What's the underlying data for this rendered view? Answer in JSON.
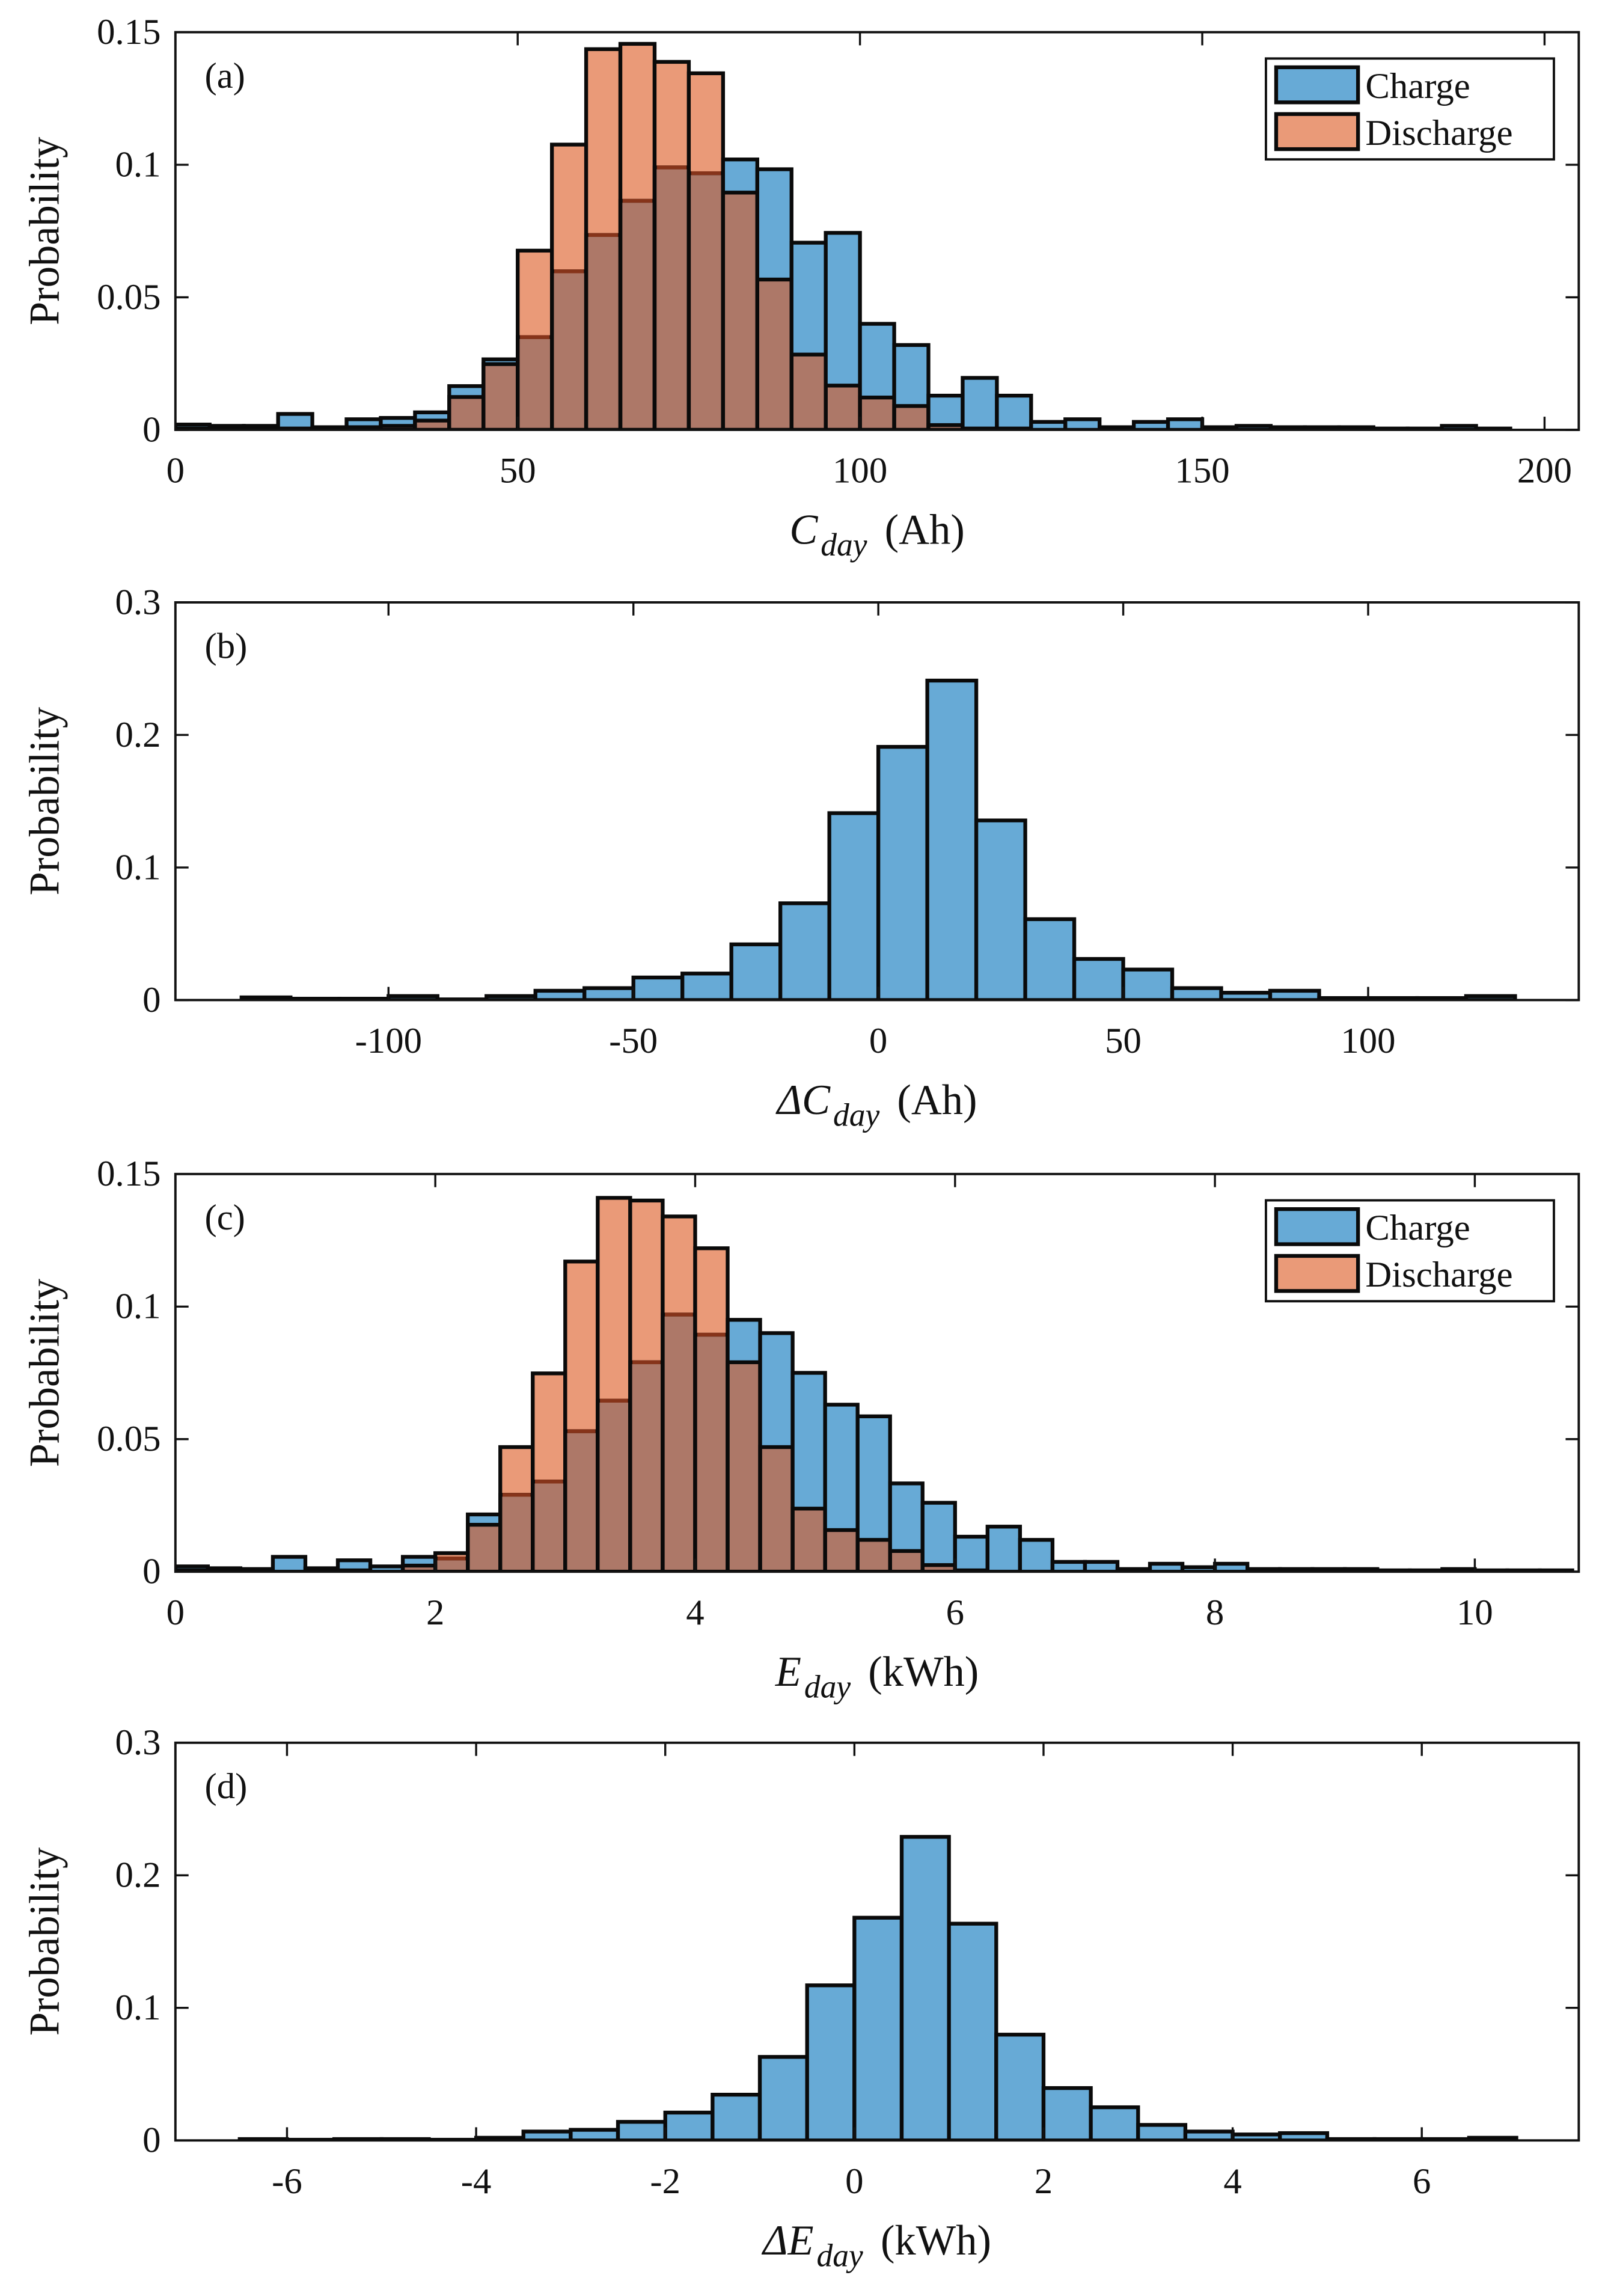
{
  "colors": {
    "charge": "#67aad6",
    "discharge": "#ea9a78",
    "overlap": "#ad7868",
    "overlap_edge": "#86341a",
    "edge": "#0a0a0a"
  },
  "chart_data": [
    {
      "type": "bar",
      "subtype": "histogram",
      "panel_label": "(a)",
      "ylabel": "Probability",
      "xlabel": {
        "symbol": "C",
        "subscript": "day",
        "unit": "(Ah)"
      },
      "xlim": [
        0,
        205
      ],
      "ylim": [
        0,
        0.15
      ],
      "xticks": [
        0,
        50,
        100,
        150,
        200
      ],
      "xtick_labels": [
        "0",
        "50",
        "100",
        "150",
        "200"
      ],
      "yticks": [
        0,
        0.05,
        0.1,
        0.15
      ],
      "ytick_labels": [
        "0",
        "0.05",
        "0.1",
        "0.15"
      ],
      "bin_start": 0,
      "bin_width": 5,
      "legend": {
        "entries": [
          "Charge",
          "Discharge"
        ],
        "placement": "top-right"
      },
      "series": [
        {
          "name": "Charge",
          "values": [
            0.002,
            0.0015,
            0.0015,
            0.006,
            0.001,
            0.004,
            0.0045,
            0.0066,
            0.0165,
            0.0266,
            0.035,
            0.0598,
            0.0735,
            0.0864,
            0.099,
            0.0968,
            0.102,
            0.0983,
            0.0706,
            0.0743,
            0.04,
            0.032,
            0.0129,
            0.0196,
            0.0129,
            0.003,
            0.004,
            0.001,
            0.003,
            0.004,
            0.001,
            0.0015,
            0.001,
            0.001,
            0.001,
            0.0005,
            0.0005,
            0.0015,
            0.0005
          ]
        },
        {
          "name": "Discharge",
          "values": [
            0.0005,
            0.0005,
            0.0005,
            0.0005,
            0.0005,
            0.001,
            0.0015,
            0.0035,
            0.0124,
            0.0248,
            0.0676,
            0.1076,
            0.1436,
            0.1456,
            0.1388,
            0.1345,
            0.0895,
            0.0567,
            0.0284,
            0.0167,
            0.0122,
            0.009,
            0.0018,
            0.0005,
            0.0005,
            0,
            0,
            0,
            0,
            0,
            0,
            0,
            0,
            0,
            0,
            0,
            0,
            0,
            0
          ]
        }
      ]
    },
    {
      "type": "bar",
      "subtype": "histogram",
      "panel_label": "(b)",
      "ylabel": "Probability",
      "xlabel": {
        "symbol": "ΔC",
        "subscript": "day",
        "unit": "(Ah)"
      },
      "xlim": [
        -143.5,
        143
      ],
      "ylim": [
        0,
        0.3
      ],
      "xticks": [
        -100,
        -50,
        0,
        50,
        100
      ],
      "xtick_labels": [
        "-100",
        "-50",
        "0",
        "50",
        "100"
      ],
      "yticks": [
        0,
        0.1,
        0.2,
        0.3
      ],
      "ytick_labels": [
        "0",
        "0.1",
        "0.2",
        "0.3"
      ],
      "bin_start": -130,
      "bin_width": 10,
      "series": [
        {
          "name": "Charge",
          "values": [
            0.002,
            0.001,
            0.001,
            0.003,
            0.0005,
            0.003,
            0.007,
            0.009,
            0.017,
            0.02,
            0.042,
            0.073,
            0.141,
            0.191,
            0.241,
            0.1355,
            0.061,
            0.031,
            0.023,
            0.009,
            0.0055,
            0.007,
            0.0015,
            0.0015,
            0.0015,
            0.003
          ]
        }
      ]
    },
    {
      "type": "bar",
      "subtype": "histogram",
      "panel_label": "(c)",
      "ylabel": "Probability",
      "xlabel": {
        "symbol": "E",
        "subscript": "day",
        "unit": "(kWh)"
      },
      "xlim": [
        0,
        10.8
      ],
      "ylim": [
        0,
        0.15
      ],
      "xticks": [
        0,
        2,
        4,
        6,
        8,
        10
      ],
      "xtick_labels": [
        "0",
        "2",
        "4",
        "6",
        "8",
        "10"
      ],
      "yticks": [
        0,
        0.05,
        0.1,
        0.15
      ],
      "ytick_labels": [
        "0",
        "0.05",
        "0.1",
        "0.15"
      ],
      "bin_start": 0,
      "bin_width": 0.25,
      "legend": {
        "entries": [
          "Charge",
          "Discharge"
        ],
        "placement": "top-right"
      },
      "series": [
        {
          "name": "Charge",
          "values": [
            0.002,
            0.0013,
            0.001,
            0.0056,
            0.0013,
            0.0043,
            0.002,
            0.0056,
            0.005,
            0.0216,
            0.029,
            0.034,
            0.053,
            0.0645,
            0.079,
            0.097,
            0.0894,
            0.095,
            0.09,
            0.075,
            0.063,
            0.0586,
            0.0333,
            0.026,
            0.0132,
            0.017,
            0.012,
            0.0037,
            0.0037,
            0.001,
            0.003,
            0.0017,
            0.003,
            0.001,
            0.001,
            0.001,
            0.001,
            0.0005,
            0.0005,
            0.001,
            0.0005,
            0.0005,
            0.0005
          ]
        },
        {
          "name": "Discharge",
          "values": [
            0.0005,
            0,
            0,
            0,
            0,
            0.0005,
            0,
            0.0023,
            0.007,
            0.0177,
            0.047,
            0.0748,
            0.117,
            0.141,
            0.14,
            0.134,
            0.122,
            0.079,
            0.047,
            0.0238,
            0.0157,
            0.012,
            0.0078,
            0.0025,
            0.0005,
            0,
            0,
            0,
            0,
            0,
            0,
            0,
            0,
            0,
            0,
            0,
            0,
            0,
            0,
            0,
            0,
            0,
            0
          ]
        }
      ]
    },
    {
      "type": "bar",
      "subtype": "histogram",
      "panel_label": "(d)",
      "ylabel": "Probability",
      "xlabel": {
        "symbol": "ΔE",
        "subscript": "day",
        "unit": "(kWh)"
      },
      "xlim": [
        -7.18,
        7.66
      ],
      "ylim": [
        0,
        0.3
      ],
      "xticks": [
        -6,
        -4,
        -2,
        0,
        2,
        4,
        6
      ],
      "xtick_labels": [
        "-6",
        "-4",
        "-2",
        "0",
        "2",
        "4",
        "6"
      ],
      "yticks": [
        0,
        0.1,
        0.2,
        0.3
      ],
      "ytick_labels": [
        "0",
        "0.1",
        "0.2",
        "0.3"
      ],
      "bin_start": -6.5,
      "bin_width": 0.5,
      "series": [
        {
          "name": "Charge",
          "values": [
            0.001,
            0.0005,
            0.001,
            0.001,
            0.0005,
            0.002,
            0.0067,
            0.008,
            0.014,
            0.021,
            0.0345,
            0.063,
            0.117,
            0.168,
            0.229,
            0.1635,
            0.0798,
            0.0395,
            0.025,
            0.0117,
            0.0067,
            0.0045,
            0.0055,
            0.001,
            0.001,
            0.001,
            0.002
          ]
        }
      ]
    }
  ]
}
